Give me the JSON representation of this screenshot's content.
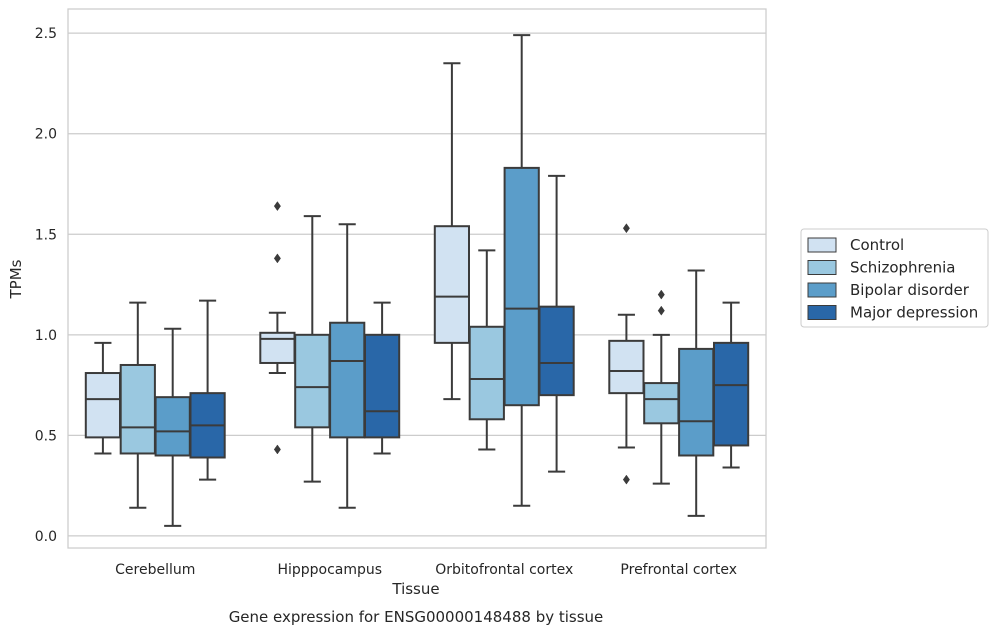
{
  "chart_data": {
    "type": "box",
    "caption": "Gene expression for ENSG00000148488 by tissue",
    "xlabel": "Tissue",
    "ylabel": "TPMs",
    "ylim": [
      -0.06,
      2.62
    ],
    "yticks": [
      0.0,
      0.5,
      1.0,
      1.5,
      2.0,
      2.5
    ],
    "ytick_labels": [
      "0.0",
      "0.5",
      "1.0",
      "1.5",
      "2.0",
      "2.5"
    ],
    "grid": "horizontal",
    "legend_position": "right",
    "categories": [
      "Cerebellum",
      "Hipppocampus",
      "Orbitofrontal cortex",
      "Prefrontal cortex"
    ],
    "series": [
      {
        "name": "Control",
        "color": "#d1e2f2",
        "boxes": [
          {
            "whislo": 0.41,
            "q1": 0.49,
            "med": 0.68,
            "q3": 0.81,
            "whishi": 0.96,
            "fliers": []
          },
          {
            "whislo": 0.81,
            "q1": 0.86,
            "med": 0.98,
            "q3": 1.01,
            "whishi": 1.11,
            "fliers": [
              1.64,
              1.38,
              0.43
            ]
          },
          {
            "whislo": 0.68,
            "q1": 0.96,
            "med": 1.19,
            "q3": 1.54,
            "whishi": 2.35,
            "fliers": []
          },
          {
            "whislo": 0.44,
            "q1": 0.71,
            "med": 0.82,
            "q3": 0.97,
            "whishi": 1.1,
            "fliers": [
              1.53,
              0.28
            ]
          }
        ]
      },
      {
        "name": "Schizophrenia",
        "color": "#9ac8e0",
        "boxes": [
          {
            "whislo": 0.14,
            "q1": 0.41,
            "med": 0.54,
            "q3": 0.85,
            "whishi": 1.16,
            "fliers": []
          },
          {
            "whislo": 0.27,
            "q1": 0.54,
            "med": 0.74,
            "q3": 1.0,
            "whishi": 1.59,
            "fliers": []
          },
          {
            "whislo": 0.43,
            "q1": 0.58,
            "med": 0.78,
            "q3": 1.04,
            "whishi": 1.42,
            "fliers": []
          },
          {
            "whislo": 0.26,
            "q1": 0.56,
            "med": 0.68,
            "q3": 0.76,
            "whishi": 1.0,
            "fliers": [
              1.2,
              1.12
            ]
          }
        ]
      },
      {
        "name": "Bipolar disorder",
        "color": "#5b9dc9",
        "boxes": [
          {
            "whislo": 0.05,
            "q1": 0.4,
            "med": 0.52,
            "q3": 0.69,
            "whishi": 1.03,
            "fliers": []
          },
          {
            "whislo": 0.14,
            "q1": 0.49,
            "med": 0.87,
            "q3": 1.06,
            "whishi": 1.55,
            "fliers": []
          },
          {
            "whislo": 0.15,
            "q1": 0.65,
            "med": 1.13,
            "q3": 1.83,
            "whishi": 2.49,
            "fliers": []
          },
          {
            "whislo": 0.1,
            "q1": 0.4,
            "med": 0.57,
            "q3": 0.93,
            "whishi": 1.32,
            "fliers": []
          }
        ]
      },
      {
        "name": "Major depression",
        "color": "#2967a8",
        "boxes": [
          {
            "whislo": 0.28,
            "q1": 0.39,
            "med": 0.55,
            "q3": 0.71,
            "whishi": 1.17,
            "fliers": []
          },
          {
            "whislo": 0.41,
            "q1": 0.49,
            "med": 0.62,
            "q3": 1.0,
            "whishi": 1.16,
            "fliers": []
          },
          {
            "whislo": 0.32,
            "q1": 0.7,
            "med": 0.86,
            "q3": 1.14,
            "whishi": 1.79,
            "fliers": []
          },
          {
            "whislo": 0.34,
            "q1": 0.45,
            "med": 0.75,
            "q3": 0.96,
            "whishi": 1.16,
            "fliers": []
          }
        ]
      }
    ]
  }
}
